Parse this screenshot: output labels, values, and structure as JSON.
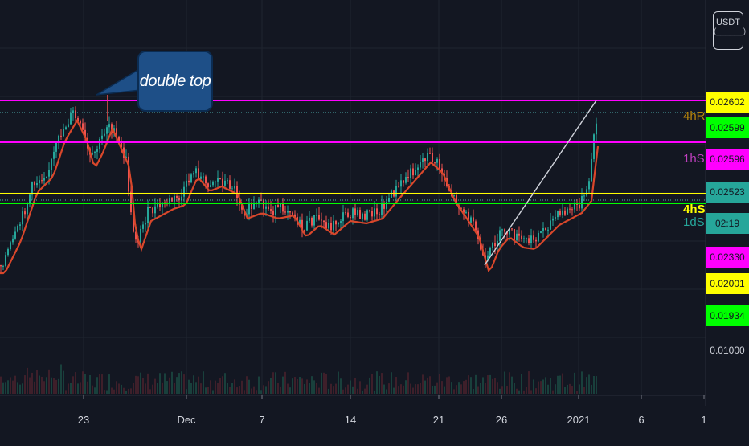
{
  "annotation": {
    "text": "double top"
  },
  "currency": {
    "label": "USDT"
  },
  "chart_data": {
    "type": "candlestick",
    "y_labels_on_axis": [
      {
        "text": "0.02602",
        "bg": "#ffff00",
        "fg": "#131722"
      },
      {
        "text": "0.02599",
        "bg": "#00ff00",
        "fg": "#131722"
      },
      {
        "text": "0.02596",
        "bg": "#ff00ff",
        "fg": "#131722"
      },
      {
        "text": "0.02523",
        "bg": "#26a69a",
        "fg": "#131722"
      },
      {
        "text": "02:19",
        "bg": "#26a69a",
        "fg": "#131722"
      },
      {
        "text": "0.02330",
        "bg": "#ff00ff",
        "fg": "#131722"
      },
      {
        "text": "0.02001",
        "bg": "#ffff00",
        "fg": "#131722"
      },
      {
        "text": "0.01934",
        "bg": "#00ff00",
        "fg": "#131722"
      },
      {
        "text": "0.01000",
        "bg": "",
        "fg": "#d1d4dc"
      }
    ],
    "x_tick_labels": [
      "23",
      "Dec",
      "7",
      "14",
      "21",
      "26",
      "2021",
      "6",
      "1"
    ],
    "level_labels": [
      {
        "text": "4hR",
        "color": "#b8860b"
      },
      {
        "text": "1hS",
        "color": "#c040c0"
      },
      {
        "text": "4hS",
        "color": "#ffff00"
      },
      {
        "text": "1dS",
        "color": "#26a69a"
      }
    ],
    "levels": [
      {
        "name": "resistance-top",
        "color": "#ff00ff"
      },
      {
        "name": "resistance-mid",
        "color": "#ff00ff"
      },
      {
        "name": "support-yellow",
        "color": "#ffff00"
      },
      {
        "name": "support-green",
        "color": "#00ff00"
      }
    ],
    "colors": {
      "up": "#26a69a",
      "down": "#ef5350",
      "ma": "#d9472b",
      "trend": "#d1d4dc",
      "grid": "#1f2430"
    }
  }
}
